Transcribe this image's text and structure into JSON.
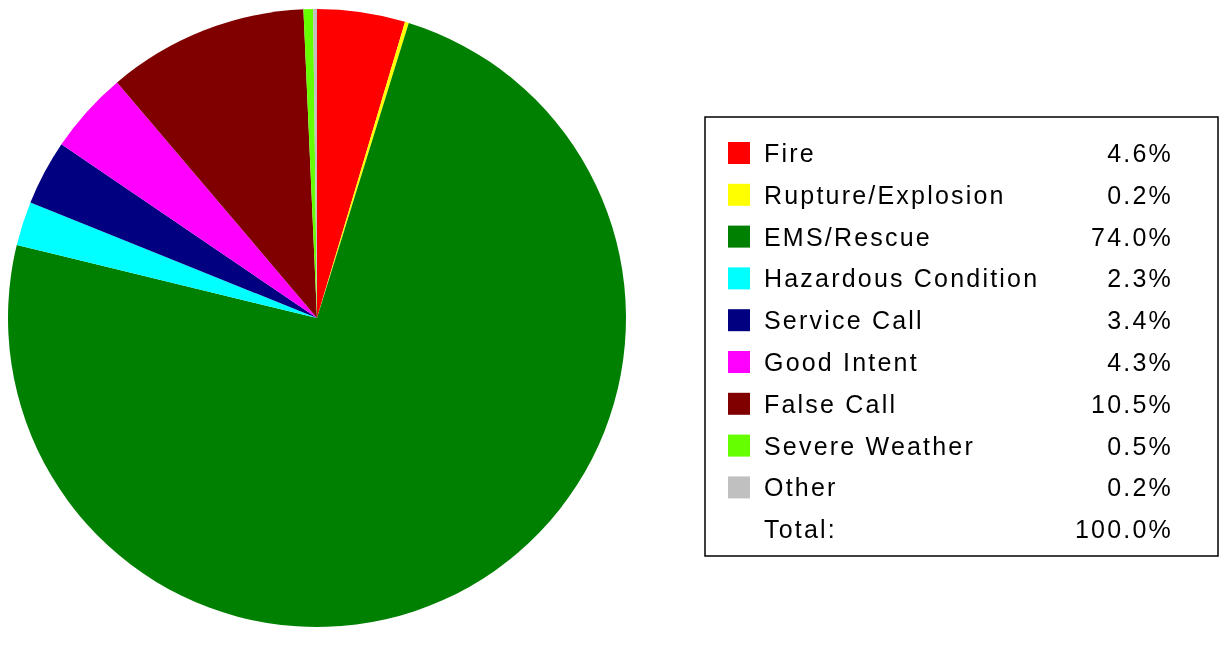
{
  "chart_data": {
    "type": "pie",
    "categories": [
      "Fire",
      "Rupture/Explosion",
      "EMS/Rescue",
      "Hazardous Condition",
      "Service Call",
      "Good Intent",
      "False Call",
      "Severe Weather",
      "Other"
    ],
    "values": [
      4.6,
      0.2,
      74.0,
      2.3,
      3.4,
      4.3,
      10.5,
      0.5,
      0.2
    ],
    "colors": [
      "#ff0000",
      "#ffff00",
      "#008000",
      "#00ffff",
      "#000080",
      "#ff00ff",
      "#800000",
      "#66ff00",
      "#c0c0c0"
    ],
    "value_labels": [
      "4.6%",
      "0.2%",
      "74.0%",
      "2.3%",
      "3.4%",
      "4.3%",
      "10.5%",
      "0.5%",
      "0.2%"
    ],
    "legend": "right",
    "annotations": [
      "Total:",
      "100.0%"
    ]
  }
}
